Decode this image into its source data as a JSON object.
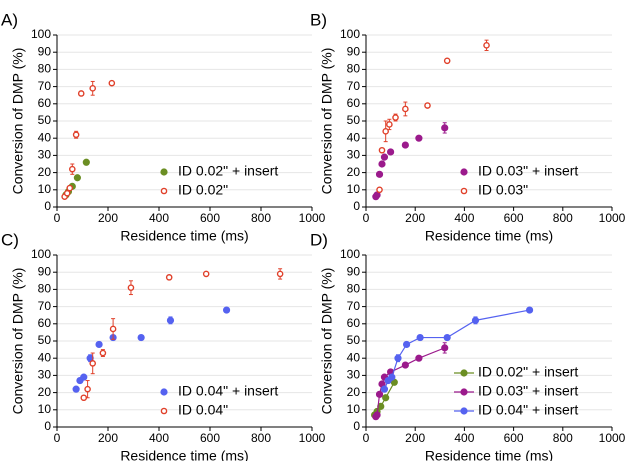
{
  "chart_data": [
    {
      "type": "scatter",
      "panel_label": "A)",
      "xlabel": "Residence time (ms)",
      "ylabel": "Conversion of DMP (%)",
      "xlim": [
        0,
        1000
      ],
      "ylim": [
        0,
        100
      ],
      "xticks": [
        0,
        200,
        400,
        600,
        800,
        1000
      ],
      "yticks": [
        0,
        10,
        20,
        30,
        40,
        50,
        60,
        70,
        80,
        90,
        100
      ],
      "grid": true,
      "legend": "lower right",
      "series": [
        {
          "name": "ID 0.02\" + insert",
          "color": "#6b8e23",
          "marker": "filled",
          "x": [
            35,
            45,
            60,
            80,
            115
          ],
          "values": [
            7,
            9,
            12,
            17,
            26
          ]
        },
        {
          "name": "ID 0.02\"",
          "color": "#e0402a",
          "marker": "open",
          "x": [
            30,
            40,
            50,
            60,
            75,
            95,
            140,
            215
          ],
          "values": [
            6,
            8,
            11,
            22,
            42,
            66,
            69,
            72
          ],
          "errors": [
            1,
            1,
            1,
            3,
            2,
            1,
            4,
            1
          ]
        }
      ]
    },
    {
      "type": "scatter",
      "panel_label": "B)",
      "xlabel": "Residence time (ms)",
      "ylabel": "Conversion of DMP (%)",
      "xlim": [
        0,
        1000
      ],
      "ylim": [
        0,
        100
      ],
      "xticks": [
        0,
        200,
        400,
        600,
        800,
        1000
      ],
      "yticks": [
        0,
        10,
        20,
        30,
        40,
        50,
        60,
        70,
        80,
        90,
        100
      ],
      "grid": true,
      "legend": "lower right",
      "series": [
        {
          "name": "ID 0.03\" + insert",
          "color": "#9b1a8c",
          "marker": "filled",
          "x": [
            40,
            45,
            55,
            65,
            75,
            100,
            160,
            215,
            320
          ],
          "values": [
            6,
            7,
            19,
            25,
            29,
            32,
            36,
            40,
            46
          ],
          "errors": [
            1,
            1,
            1,
            1,
            1,
            1,
            1,
            1,
            3
          ]
        },
        {
          "name": "ID 0.03\"",
          "color": "#e0402a",
          "marker": "open",
          "x": [
            55,
            65,
            80,
            95,
            120,
            160,
            250,
            330,
            490
          ],
          "values": [
            10,
            33,
            44,
            48,
            52,
            57,
            59,
            85,
            94
          ],
          "errors": [
            1,
            1,
            6,
            3,
            2,
            4,
            1,
            1,
            3
          ]
        }
      ]
    },
    {
      "type": "scatter",
      "panel_label": "C)",
      "xlabel": "Residence time (ms)",
      "ylabel": "Conversion of DMP (%)",
      "xlim": [
        0,
        1000
      ],
      "ylim": [
        0,
        100
      ],
      "xticks": [
        0,
        200,
        400,
        600,
        800,
        1000
      ],
      "yticks": [
        0,
        10,
        20,
        30,
        40,
        50,
        60,
        70,
        80,
        90,
        100
      ],
      "grid": true,
      "legend": "lower right",
      "series": [
        {
          "name": "ID 0.04\" + insert",
          "color": "#5562f0",
          "marker": "filled",
          "x": [
            75,
            90,
            105,
            130,
            165,
            220,
            330,
            445,
            665
          ],
          "values": [
            22,
            27,
            29,
            40,
            48,
            52,
            52,
            62,
            68
          ],
          "errors": [
            1,
            1,
            1,
            2,
            1,
            1,
            1,
            2,
            1
          ]
        },
        {
          "name": "ID 0.04\"",
          "color": "#e0402a",
          "marker": "open",
          "x": [
            105,
            120,
            140,
            180,
            220,
            290,
            440,
            585,
            875
          ],
          "values": [
            17,
            22,
            37,
            43,
            57,
            81,
            87,
            89,
            89
          ],
          "errors": [
            1,
            5,
            6,
            2,
            6,
            4,
            1,
            1,
            3
          ]
        }
      ]
    },
    {
      "type": "line",
      "panel_label": "D)",
      "xlabel": "Residence time (ms)",
      "ylabel": "Conversion of DMP (%)",
      "xlim": [
        0,
        1000
      ],
      "ylim": [
        0,
        100
      ],
      "xticks": [
        0,
        200,
        400,
        600,
        800,
        1000
      ],
      "yticks": [
        0,
        10,
        20,
        30,
        40,
        50,
        60,
        70,
        80,
        90,
        100
      ],
      "grid": true,
      "legend": "lower right",
      "series": [
        {
          "name": "ID 0.02\" + insert",
          "color": "#6b8e23",
          "marker": "filled",
          "x": [
            35,
            45,
            60,
            80,
            115
          ],
          "values": [
            7,
            9,
            12,
            17,
            26
          ]
        },
        {
          "name": "ID 0.03\" + insert",
          "color": "#9b1a8c",
          "marker": "filled",
          "x": [
            40,
            45,
            55,
            65,
            75,
            100,
            160,
            215,
            320
          ],
          "values": [
            6,
            7,
            19,
            25,
            29,
            32,
            36,
            40,
            46
          ],
          "errors": [
            1,
            1,
            1,
            1,
            1,
            1,
            1,
            1,
            3
          ]
        },
        {
          "name": "ID 0.04\" + insert",
          "color": "#5562f0",
          "marker": "filled",
          "x": [
            75,
            90,
            105,
            130,
            165,
            220,
            330,
            445,
            665
          ],
          "values": [
            22,
            27,
            29,
            40,
            48,
            52,
            52,
            62,
            68
          ],
          "errors": [
            1,
            1,
            1,
            2,
            1,
            1,
            1,
            2,
            1
          ]
        }
      ]
    }
  ]
}
